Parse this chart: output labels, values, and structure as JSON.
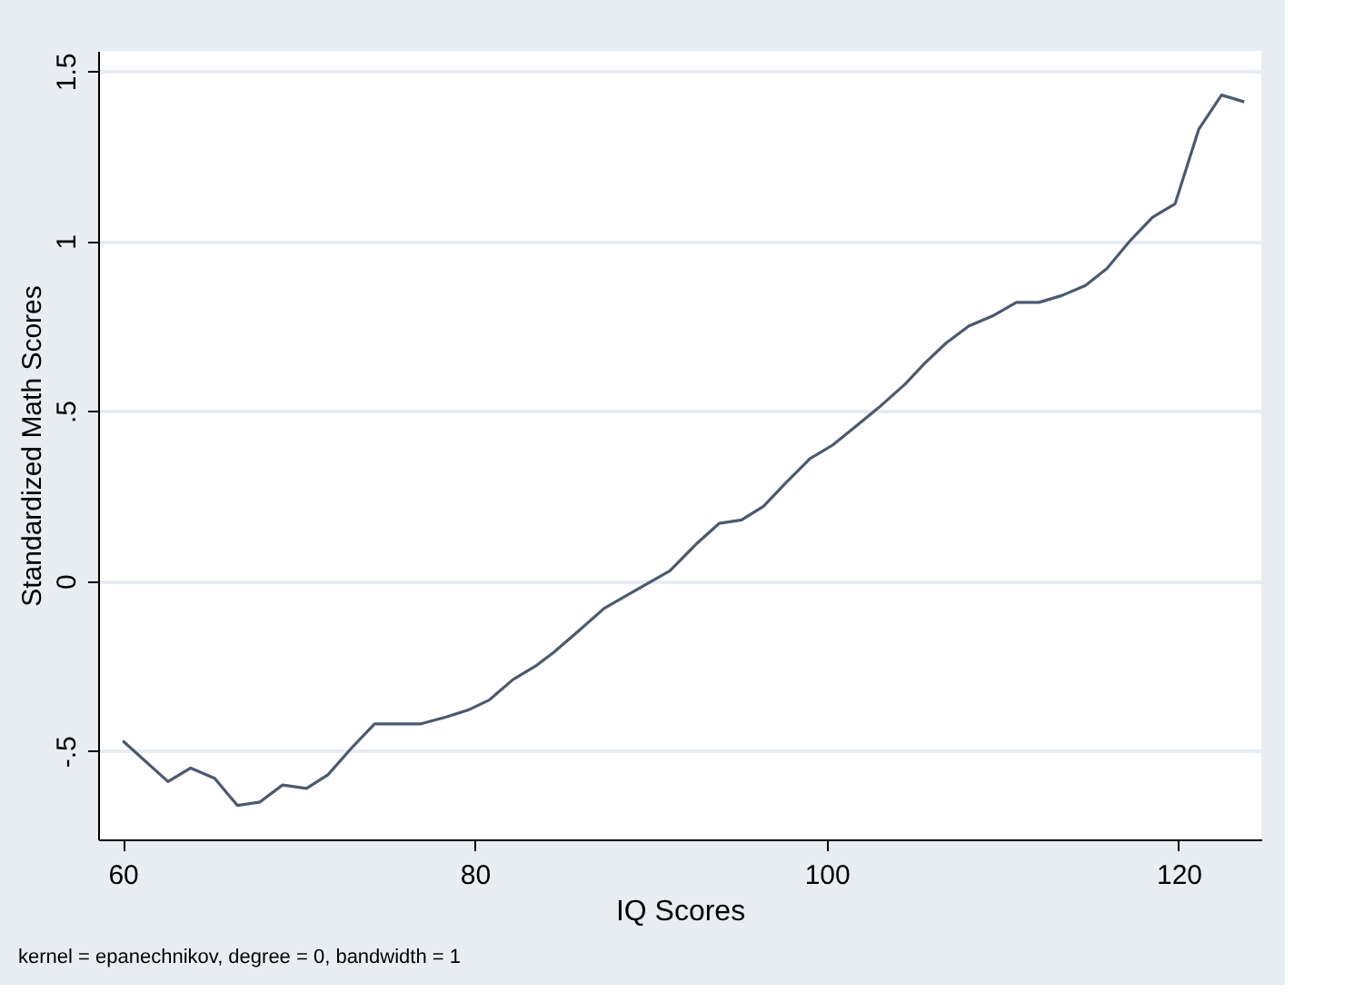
{
  "chart_data": {
    "type": "line",
    "xlabel": "IQ Scores",
    "ylabel": "Standardized Math Scores",
    "annotations": [
      "kernel = epanechnikov, degree = 0, bandwidth = 1"
    ],
    "x": [
      60.0,
      62.57,
      63.86,
      65.22,
      66.51,
      67.8,
      69.08,
      70.44,
      71.66,
      73.02,
      74.31,
      75.66,
      76.95,
      78.38,
      79.6,
      80.82,
      82.17,
      83.46,
      84.48,
      85.83,
      87.36,
      88.71,
      90.07,
      91.09,
      92.61,
      93.9,
      95.16,
      96.41,
      97.7,
      99.05,
      100.34,
      101.77,
      102.95,
      104.47,
      105.56,
      106.78,
      108.07,
      109.43,
      110.78,
      112.07,
      113.36,
      114.71,
      115.93,
      117.22,
      118.51,
      119.8,
      121.15,
      122.44,
      123.73
    ],
    "series": [
      {
        "color": "#4a5a70",
        "values": [
          -0.47,
          -0.59,
          -0.55,
          -0.58,
          -0.66,
          -0.65,
          -0.6,
          -0.61,
          -0.57,
          -0.49,
          -0.42,
          -0.42,
          -0.42,
          -0.4,
          -0.38,
          -0.35,
          -0.29,
          -0.25,
          -0.21,
          -0.15,
          -0.08,
          -0.04,
          0.0,
          0.03,
          0.11,
          0.17,
          0.18,
          0.22,
          0.29,
          0.36,
          0.4,
          0.46,
          0.51,
          0.58,
          0.64,
          0.7,
          0.75,
          0.78,
          0.82,
          0.82,
          0.84,
          0.87,
          0.92,
          1.0,
          1.07,
          1.11,
          1.33,
          1.43,
          1.41
        ]
      }
    ],
    "xlim": [
      58.6,
      124.7
    ],
    "ylim": [
      -0.76,
      1.56
    ],
    "xticks": [
      60,
      80,
      100,
      120
    ],
    "yticks": [
      {
        "value": -0.5,
        "label": "-.5"
      },
      0,
      {
        "value": 0.5,
        "label": ".5"
      },
      1,
      1.5
    ],
    "grid": "y",
    "marker": "none",
    "line_style": "solid"
  }
}
